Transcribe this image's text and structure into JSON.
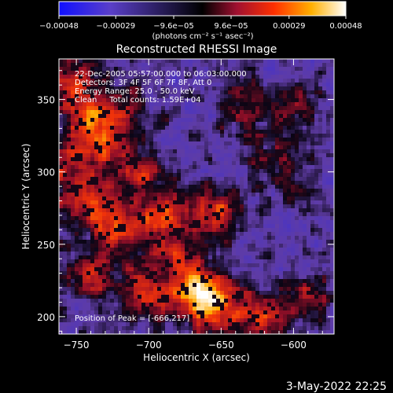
{
  "chart_data": {
    "type": "heatmap",
    "title": "Reconstructed RHESSI Image",
    "xlabel": "Heliocentric X (arcsec)",
    "ylabel": "Heliocentric Y (arcsec)",
    "xlim": [
      -762,
      -572
    ],
    "ylim": [
      188,
      378
    ],
    "x_ticks": [
      -750,
      -700,
      -650,
      -600
    ],
    "x_tick_labels": [
      "−750",
      "−700",
      "−650",
      "−600"
    ],
    "y_ticks": [
      200,
      250,
      300,
      350
    ],
    "y_tick_labels": [
      "200",
      "250",
      "300",
      "350"
    ],
    "colorbar": {
      "range": [
        -0.00048,
        0.00048
      ],
      "ticks": [
        -0.00048,
        -0.00029,
        -9.6e-05,
        9.6e-05,
        0.00029,
        0.00048
      ],
      "tick_labels": [
        "−0.00048",
        "−0.00029",
        "−9.6e−05",
        "9.6e−05",
        "0.00029",
        "0.00048"
      ],
      "unit_label": "(photons cm⁻² s⁻¹ asec⁻²)"
    },
    "annotations": [
      "22-Dec-2005 05:57:00.000 to 06:03:00.000",
      "Detectors: 3F 4F 5F 6F 7F 8F, Att 0",
      "Energy Range: 25.0 - 50.0 keV",
      "Clean     Total counts: 1.59E+04"
    ],
    "peak_label": "Position of Peak = [-666,217]",
    "peak_position": [
      -666,
      217
    ],
    "bright_sources": [
      {
        "x": -752,
        "y": 360,
        "intensity": 0.55
      },
      {
        "x": -740,
        "y": 338,
        "intensity": 0.45
      },
      {
        "x": -732,
        "y": 318,
        "intensity": 0.5
      },
      {
        "x": -718,
        "y": 342,
        "intensity": 0.35
      },
      {
        "x": -705,
        "y": 300,
        "intensity": 0.4
      },
      {
        "x": -744,
        "y": 280,
        "intensity": 0.55
      },
      {
        "x": -722,
        "y": 262,
        "intensity": 0.6
      },
      {
        "x": -690,
        "y": 270,
        "intensity": 0.55
      },
      {
        "x": -655,
        "y": 272,
        "intensity": 0.5
      },
      {
        "x": -635,
        "y": 345,
        "intensity": 0.35
      },
      {
        "x": -600,
        "y": 340,
        "intensity": 0.3
      },
      {
        "x": -610,
        "y": 305,
        "intensity": 0.35
      },
      {
        "x": -740,
        "y": 230,
        "intensity": 0.45
      },
      {
        "x": -700,
        "y": 218,
        "intensity": 0.6
      },
      {
        "x": -666,
        "y": 217,
        "intensity": 1.0
      },
      {
        "x": -650,
        "y": 205,
        "intensity": 0.55
      },
      {
        "x": -620,
        "y": 200,
        "intensity": 0.5
      },
      {
        "x": -590,
        "y": 212,
        "intensity": 0.35
      },
      {
        "x": -680,
        "y": 245,
        "intensity": 0.35
      },
      {
        "x": -760,
        "y": 310,
        "intensity": 0.4
      }
    ],
    "colors": {
      "low": "#0000ff",
      "mid": "#000000",
      "high": "#ffffff",
      "background": "#5a3fa8"
    }
  },
  "timestamp": "3-May-2022 22:25"
}
